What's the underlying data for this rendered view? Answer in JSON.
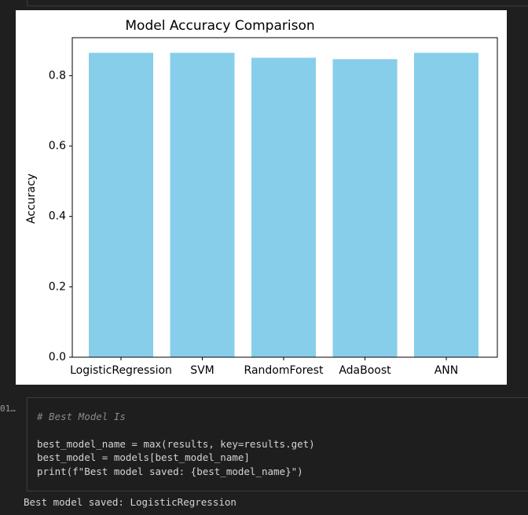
{
  "chart_data": {
    "type": "bar",
    "title": "Model Accuracy Comparison",
    "y_label": "Accuracy",
    "categories": [
      "LogisticRegression",
      "SVM",
      "RandomForest",
      "AdaBoost",
      "ANN"
    ],
    "values": [
      0.865,
      0.865,
      0.851,
      0.847,
      0.865
    ],
    "color": "#87ceeb",
    "ylim": [
      0,
      0.908
    ],
    "yticks": [
      {
        "value": 0,
        "label": "0.0"
      },
      {
        "value": 0.2,
        "label": "0.2"
      },
      {
        "value": 0.4,
        "label": "0.4"
      },
      {
        "value": 0.6,
        "label": "0.6"
      },
      {
        "value": 0.8,
        "label": "0.8"
      }
    ],
    "grid": false
  },
  "cell": {
    "prompt": "01…",
    "code": [
      "# Best Model Is",
      "best_model_name = max(results, key=results.get)",
      "best_model = models[best_model_name]",
      "print(f\"Best model saved: {best_model_name}\")"
    ],
    "output": "Best model saved: LogisticRegression"
  }
}
